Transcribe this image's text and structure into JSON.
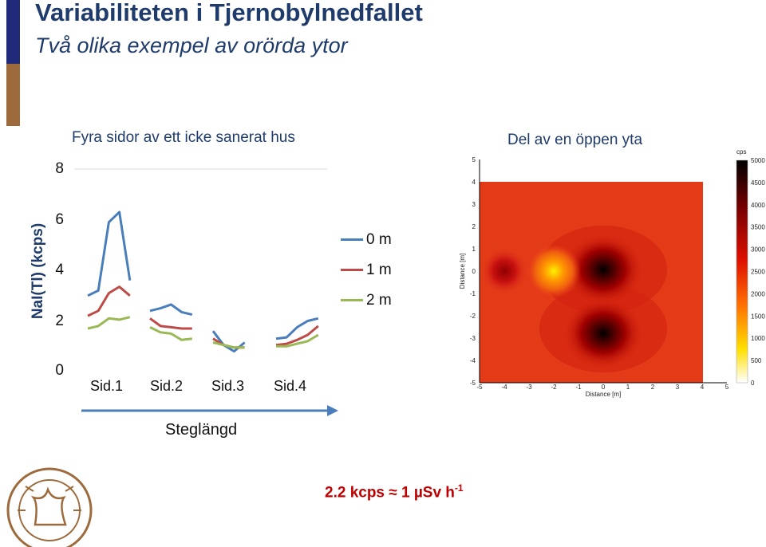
{
  "header": {
    "title": "Variabiliteten i Tjernobylnedfallet",
    "subtitle": "Två olika exempel av orörda ytor"
  },
  "footnote": {
    "text": "2.2 kcps ≈ 1 µSv h",
    "superscript": "-1"
  },
  "colors": {
    "title": "#1f3b6b",
    "footnote": "#c00000",
    "bar_blue": "#1f2a7a",
    "bar_brown": "#9d6a3c"
  },
  "chart_data": [
    {
      "type": "line",
      "title": "Fyra sidor av ett icke sanerat hus",
      "ylabel": "NaI(Tl) (kcps)",
      "xlabel": "Steglängd",
      "ylim": [
        0,
        8
      ],
      "yticks": [
        "0",
        "2",
        "4",
        "6",
        "8"
      ],
      "categories": [
        "Sid.1",
        "Sid.2",
        "Sid.3",
        "Sid.4"
      ],
      "legend_position": "right",
      "series": [
        {
          "name": "0 m",
          "color": "#4a7ebb",
          "segments": [
            [
              3.0,
              3.2,
              5.9,
              6.3,
              3.6
            ],
            [
              2.4,
              2.5,
              2.65,
              2.35,
              2.25
            ],
            [
              1.6,
              1.05,
              0.8,
              1.15
            ],
            [
              1.3,
              1.35,
              1.75,
              2.0,
              2.1
            ]
          ]
        },
        {
          "name": "1 m",
          "color": "#be4b48",
          "segments": [
            [
              2.2,
              2.4,
              3.1,
              3.35,
              3.0
            ],
            [
              2.1,
              1.8,
              1.75,
              1.7,
              1.7
            ],
            [
              1.3,
              1.05,
              0.95,
              0.95
            ],
            [
              1.05,
              1.1,
              1.25,
              1.45,
              1.8
            ]
          ]
        },
        {
          "name": "2 m",
          "color": "#98b954",
          "segments": [
            [
              1.7,
              1.8,
              2.1,
              2.05,
              2.15
            ],
            [
              1.75,
              1.55,
              1.5,
              1.25,
              1.3
            ],
            [
              1.15,
              1.05,
              0.95,
              0.95
            ],
            [
              1.0,
              1.0,
              1.1,
              1.2,
              1.45
            ]
          ]
        }
      ]
    },
    {
      "type": "heatmap",
      "title": "Del av en öppen yta",
      "xlabel": "Distance [m]",
      "ylabel": "Distance [m]",
      "xlim": [
        -5,
        5
      ],
      "ylim": [
        -5,
        5
      ],
      "xticks": [
        "-5",
        "-4",
        "-3",
        "-2",
        "-1",
        "0",
        "1",
        "2",
        "3",
        "4",
        "5"
      ],
      "yticks": [
        "5",
        "4",
        "3",
        "2",
        "1",
        "0",
        "-1",
        "-2",
        "-3",
        "-4",
        "-5"
      ],
      "colorbar_label": "cps",
      "colorbar_ticks": [
        "5000",
        "4500",
        "4000",
        "3500",
        "3000",
        "2500",
        "2000",
        "1500",
        "1000",
        "500",
        "0"
      ],
      "background_cps": 1400,
      "hotspots": [
        {
          "x": 0.0,
          "y": 0.3,
          "cps": 4600
        },
        {
          "x": 0.0,
          "y": -2.9,
          "cps": 4700
        },
        {
          "x": -2.0,
          "y": 0.0,
          "cps": 3400
        },
        {
          "x": -4.0,
          "y": 0.0,
          "cps": 2600
        }
      ]
    }
  ]
}
